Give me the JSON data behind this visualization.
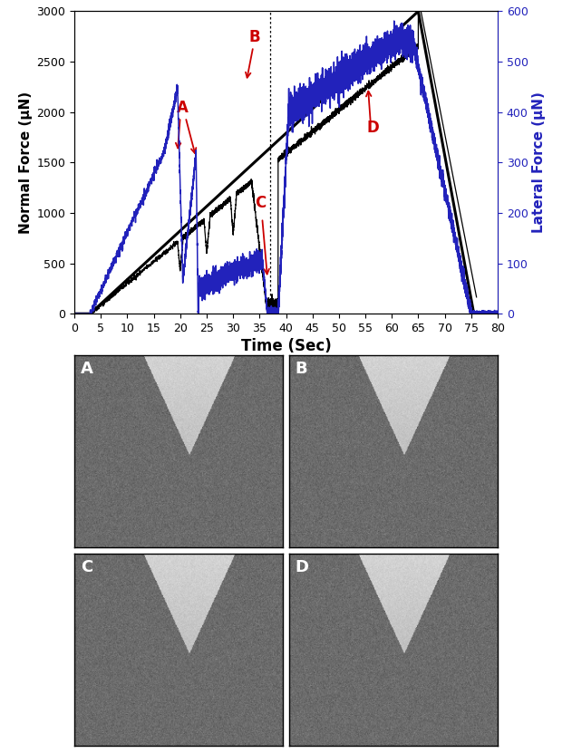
{
  "xlim": [
    0,
    80
  ],
  "ylim_left": [
    0,
    3000
  ],
  "ylim_right": [
    0,
    600
  ],
  "xticks": [
    0,
    5,
    10,
    15,
    20,
    25,
    30,
    35,
    40,
    45,
    50,
    55,
    60,
    65,
    70,
    75,
    80
  ],
  "yticks_left": [
    0,
    500,
    1000,
    1500,
    2000,
    2500,
    3000
  ],
  "yticks_right": [
    0,
    100,
    200,
    300,
    400,
    500,
    600
  ],
  "xlabel": "Time (Sec)",
  "ylabel_left": "Normal Force (μN)",
  "ylabel_right": "Lateral Force (μN)",
  "line_black_color": "#000000",
  "line_blue_color": "#2222bb",
  "trend_color": "#000000",
  "annotation_color": "#cc0000",
  "background_color": "#ffffff",
  "panel_labels": [
    "A",
    "B",
    "C",
    "D"
  ]
}
